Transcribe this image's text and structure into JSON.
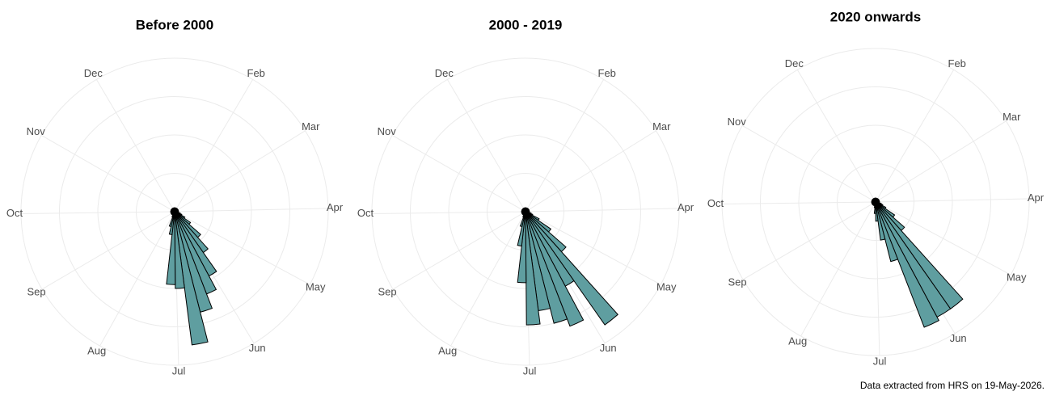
{
  "chart_data": [
    {
      "type": "polar_histogram",
      "title": "Before 2000",
      "color": "#5f9ea0",
      "edge_color": "#000000",
      "grid": true,
      "xlim": [
        0,
        365
      ],
      "xticks": [
        {
          "value": 31,
          "label": "Feb"
        },
        {
          "value": 59,
          "label": "Mar"
        },
        {
          "value": 90,
          "label": "Apr"
        },
        {
          "value": 120,
          "label": "May"
        },
        {
          "value": 151,
          "label": "Jun"
        },
        {
          "value": 181,
          "label": "Jul"
        },
        {
          "value": 212,
          "label": "Aug"
        },
        {
          "value": 243,
          "label": "Sep"
        },
        {
          "value": 273,
          "label": "Oct"
        },
        {
          "value": 304,
          "label": "Nov"
        },
        {
          "value": 334,
          "label": "Dec"
        }
      ],
      "ylim": [
        0,
        4
      ],
      "yticks": [
        1,
        2,
        3,
        4
      ],
      "bins": [
        0,
        7,
        14,
        21,
        28,
        35,
        42,
        49,
        56,
        63,
        70,
        77,
        84,
        91,
        98,
        105,
        112,
        119,
        126,
        133,
        140,
        147,
        154,
        161,
        168,
        175,
        182,
        189,
        196,
        203,
        210,
        217,
        224,
        231,
        238,
        245,
        252,
        259,
        266,
        273,
        280,
        287,
        294,
        301,
        308,
        315,
        322,
        329,
        336,
        343,
        350,
        357,
        364
      ],
      "values": [
        0.1,
        0.1,
        0.1,
        0.1,
        0.1,
        0.1,
        0.1,
        0.1,
        0.1,
        0.1,
        0.1,
        0.1,
        0.1,
        0.1,
        0.1,
        0.15,
        0.2,
        0.3,
        0.5,
        0.9,
        1.3,
        1.9,
        2.3,
        2.7,
        3.5,
        2.0,
        1.9,
        0.6,
        0.4,
        0.15,
        0.1,
        0.1,
        0.1,
        0.1,
        0.1,
        0.1,
        0.1,
        0.1,
        0.1,
        0.1,
        0.1,
        0.1,
        0.1,
        0.1,
        0.1,
        0.1,
        0.1,
        0.1,
        0.1,
        0.1,
        0.1,
        0.1
      ]
    },
    {
      "type": "polar_histogram",
      "title": "2000 - 2019",
      "color": "#5f9ea0",
      "edge_color": "#000000",
      "grid": true,
      "xlim": [
        0,
        365
      ],
      "xticks": [
        {
          "value": 31,
          "label": "Feb"
        },
        {
          "value": 59,
          "label": "Mar"
        },
        {
          "value": 90,
          "label": "Apr"
        },
        {
          "value": 120,
          "label": "May"
        },
        {
          "value": 151,
          "label": "Jun"
        },
        {
          "value": 181,
          "label": "Jul"
        },
        {
          "value": 212,
          "label": "Aug"
        },
        {
          "value": 243,
          "label": "Sep"
        },
        {
          "value": 273,
          "label": "Oct"
        },
        {
          "value": 304,
          "label": "Nov"
        },
        {
          "value": 334,
          "label": "Dec"
        }
      ],
      "ylim": [
        0,
        4
      ],
      "yticks": [
        1,
        2,
        3,
        4
      ],
      "bins": [
        0,
        7,
        14,
        21,
        28,
        35,
        42,
        49,
        56,
        63,
        70,
        77,
        84,
        91,
        98,
        105,
        112,
        119,
        126,
        133,
        140,
        147,
        154,
        161,
        168,
        175,
        182,
        189,
        196,
        203,
        210,
        217,
        224,
        231,
        238,
        245,
        252,
        259,
        266,
        273,
        280,
        287,
        294,
        301,
        308,
        315,
        322,
        329,
        336,
        343,
        350,
        357,
        364
      ],
      "values": [
        0.1,
        0.1,
        0.1,
        0.1,
        0.1,
        0.1,
        0.1,
        0.1,
        0.1,
        0.1,
        0.1,
        0.1,
        0.1,
        0.1,
        0.1,
        0.15,
        0.2,
        0.4,
        0.8,
        1.4,
        3.6,
        2.2,
        3.2,
        3.0,
        2.6,
        2.95,
        1.85,
        0.9,
        0.4,
        0.15,
        0.1,
        0.1,
        0.1,
        0.1,
        0.1,
        0.1,
        0.1,
        0.1,
        0.1,
        0.1,
        0.1,
        0.1,
        0.1,
        0.1,
        0.1,
        0.1,
        0.1,
        0.1,
        0.1,
        0.1,
        0.1,
        0.1
      ]
    },
    {
      "type": "polar_histogram",
      "title": "2020 onwards",
      "color": "#5f9ea0",
      "edge_color": "#000000",
      "grid": true,
      "xlim": [
        0,
        365
      ],
      "xticks": [
        {
          "value": 31,
          "label": "Feb"
        },
        {
          "value": 59,
          "label": "Mar"
        },
        {
          "value": 90,
          "label": "Apr"
        },
        {
          "value": 120,
          "label": "May"
        },
        {
          "value": 151,
          "label": "Jun"
        },
        {
          "value": 181,
          "label": "Jul"
        },
        {
          "value": 212,
          "label": "Aug"
        },
        {
          "value": 243,
          "label": "Sep"
        },
        {
          "value": 273,
          "label": "Oct"
        },
        {
          "value": 304,
          "label": "Nov"
        },
        {
          "value": 334,
          "label": "Dec"
        }
      ],
      "ylim": [
        0,
        4
      ],
      "yticks": [
        1,
        2,
        3,
        4
      ],
      "bins": [
        0,
        7,
        14,
        21,
        28,
        35,
        42,
        49,
        56,
        63,
        70,
        77,
        84,
        91,
        98,
        105,
        112,
        119,
        126,
        133,
        140,
        147,
        154,
        161,
        168,
        175,
        182,
        189,
        196,
        203,
        210,
        217,
        224,
        231,
        238,
        245,
        252,
        259,
        266,
        273,
        280,
        287,
        294,
        301,
        308,
        315,
        322,
        329,
        336,
        343,
        350,
        357,
        364
      ],
      "values": [
        0.1,
        0.1,
        0.1,
        0.1,
        0.1,
        0.1,
        0.1,
        0.1,
        0.1,
        0.1,
        0.1,
        0.1,
        0.1,
        0.1,
        0.1,
        0.15,
        0.2,
        0.3,
        0.6,
        1.0,
        3.4,
        3.4,
        3.5,
        1.6,
        1.0,
        0.5,
        0.3,
        0.15,
        0.1,
        0.1,
        0.1,
        0.1,
        0.1,
        0.1,
        0.1,
        0.1,
        0.1,
        0.1,
        0.1,
        0.1,
        0.1,
        0.1,
        0.1,
        0.1,
        0.1,
        0.1,
        0.1,
        0.1,
        0.1,
        0.1,
        0.1,
        0.1
      ]
    }
  ],
  "caption": "Data extracted from HRS on 19-May-2026."
}
